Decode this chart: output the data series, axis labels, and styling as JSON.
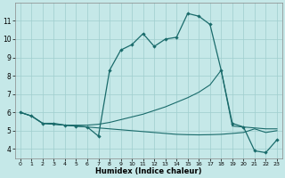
{
  "xlabel": "Humidex (Indice chaleur)",
  "bg_color": "#c5e8e8",
  "grid_color": "#9fcece",
  "line_color": "#1a6b6b",
  "x_ticks": [
    0,
    1,
    2,
    3,
    4,
    5,
    6,
    7,
    8,
    9,
    10,
    11,
    12,
    13,
    14,
    15,
    16,
    17,
    18,
    19,
    20,
    21,
    22,
    23
  ],
  "y_ticks": [
    4,
    5,
    6,
    7,
    8,
    9,
    10,
    11
  ],
  "ylim": [
    3.5,
    12.0
  ],
  "xlim": [
    -0.5,
    23.5
  ],
  "line1_x": [
    0,
    1,
    2,
    3,
    4,
    5,
    6,
    7,
    8,
    9,
    10,
    11,
    12,
    13,
    14,
    15,
    16,
    17,
    18,
    19,
    20,
    21,
    22,
    23
  ],
  "line1_y": [
    6.0,
    5.8,
    5.4,
    5.4,
    5.3,
    5.25,
    5.2,
    4.7,
    8.3,
    9.4,
    9.7,
    10.3,
    9.6,
    10.0,
    10.1,
    11.4,
    11.25,
    10.8,
    8.3,
    5.4,
    5.2,
    3.9,
    3.8,
    4.5
  ],
  "line2_x": [
    0,
    1,
    2,
    3,
    4,
    5,
    6,
    7,
    8,
    9,
    10,
    11,
    12,
    13,
    14,
    15,
    16,
    17,
    18,
    19,
    20,
    21,
    22,
    23
  ],
  "line2_y": [
    6.0,
    5.8,
    5.4,
    5.35,
    5.3,
    5.3,
    5.3,
    5.35,
    5.45,
    5.6,
    5.75,
    5.9,
    6.1,
    6.3,
    6.55,
    6.8,
    7.1,
    7.5,
    8.3,
    5.25,
    5.2,
    5.15,
    5.1,
    5.1
  ],
  "line3_x": [
    0,
    1,
    2,
    3,
    4,
    5,
    6,
    7,
    8,
    9,
    10,
    11,
    12,
    13,
    14,
    15,
    16,
    17,
    18,
    19,
    20,
    21,
    22,
    23
  ],
  "line3_y": [
    6.0,
    5.8,
    5.4,
    5.35,
    5.3,
    5.25,
    5.2,
    5.15,
    5.1,
    5.05,
    5.0,
    4.95,
    4.9,
    4.85,
    4.8,
    4.78,
    4.77,
    4.78,
    4.8,
    4.85,
    4.9,
    5.1,
    4.9,
    5.0
  ]
}
